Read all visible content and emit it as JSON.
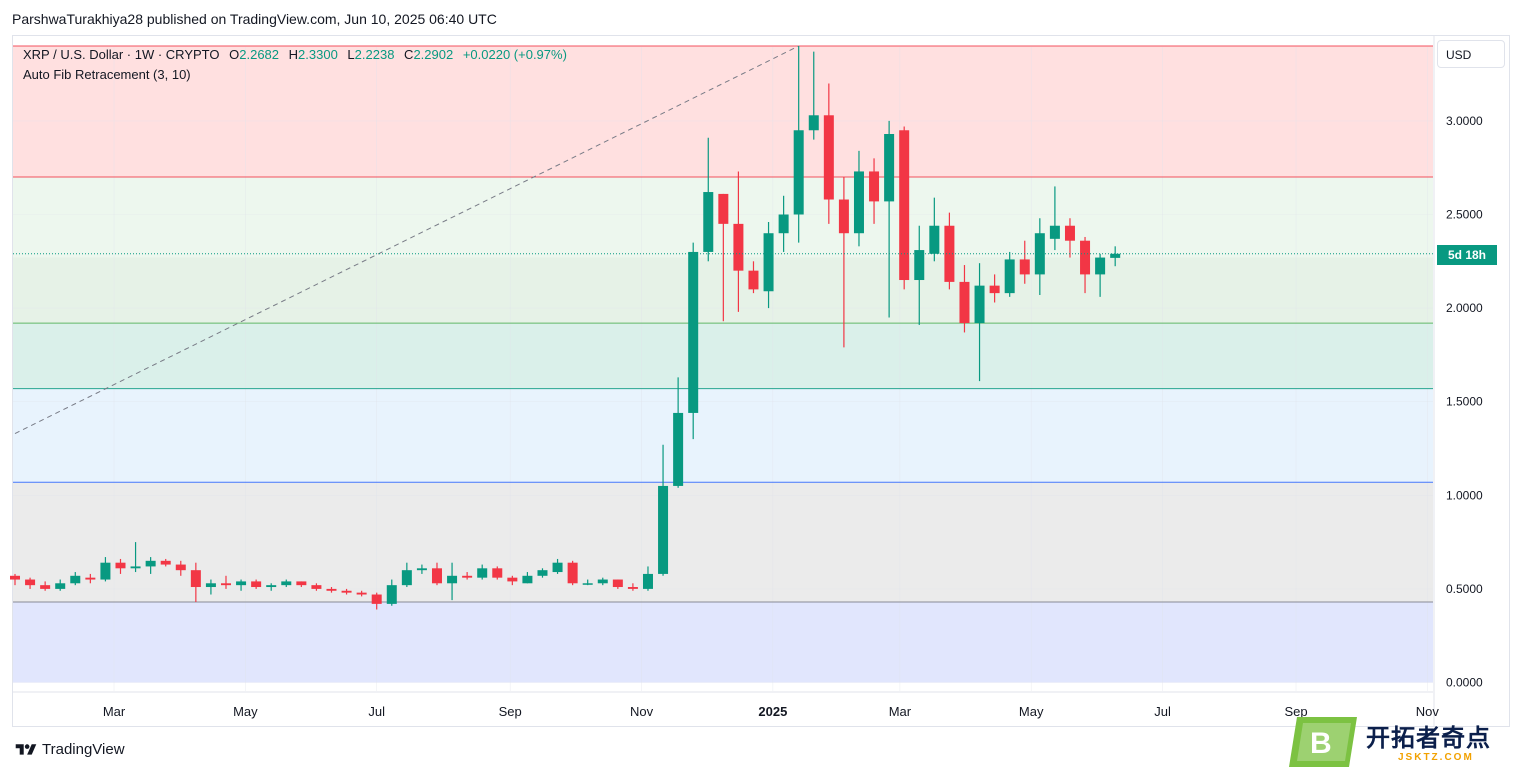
{
  "publisher_line": "ParshwaTurakhiya28 published on TradingView.com, Jun 10, 2025 06:40 UTC",
  "legend": {
    "symbol": "XRP / U.S. Dollar · 1W · CRYPTO",
    "o_label": "O",
    "o_value": "2.2682",
    "h_label": "H",
    "h_value": "2.3300",
    "l_label": "L",
    "l_value": "2.2238",
    "c_label": "C",
    "c_value": "2.2902",
    "change": "+0.0220 (+0.97%)",
    "indicator": "Auto Fib Retracement (3, 10)"
  },
  "currency_button": "USD",
  "countdown_badge": "5d 18h",
  "brand": "TradingView",
  "watermark": {
    "name": "开拓者奇点",
    "url": "JSKTZ.COM",
    "logo_letter": "B"
  },
  "colors": {
    "up": "#089981",
    "down": "#f23645",
    "fib_top": "#ffe0e0",
    "fib_2": "#edf7ee",
    "fib_3": "#e6f2e7",
    "fib_4": "#daf0ea",
    "fib_5": "#e8f3fd",
    "fib_6": "#ebebeb",
    "fib_7": "#e1e6fd"
  },
  "chart_data": {
    "type": "candlestick",
    "y_ticks": [
      "0.0000",
      "0.5000",
      "1.0000",
      "1.5000",
      "2.0000",
      "2.5000",
      "3.0000"
    ],
    "ylim": [
      0,
      3.4
    ],
    "x_ticks": [
      {
        "label": "Mar",
        "date": "2024-03-01"
      },
      {
        "label": "May",
        "date": "2024-05-01"
      },
      {
        "label": "Jul",
        "date": "2024-07-01"
      },
      {
        "label": "Sep",
        "date": "2024-09-01"
      },
      {
        "label": "Nov",
        "date": "2024-11-01"
      },
      {
        "label": "2025",
        "date": "2025-01-01",
        "bold": true
      },
      {
        "label": "Mar",
        "date": "2025-03-01"
      },
      {
        "label": "May",
        "date": "2025-05-01"
      },
      {
        "label": "Jul",
        "date": "2025-07-01"
      },
      {
        "label": "Sep",
        "date": "2025-09-01"
      },
      {
        "label": "Nov",
        "date": "2025-11-01"
      }
    ],
    "xlim": [
      "2024-01-15",
      "2025-12-05"
    ],
    "fib_levels": [
      3.4,
      2.7,
      1.92,
      1.57,
      1.07,
      0.43,
      0.0
    ],
    "trend_line": [
      {
        "date": "2024-01-15",
        "value": 1.33
      },
      {
        "date": "2025-01-13",
        "value": 3.4
      }
    ],
    "last_price": 2.2902,
    "candles": [
      {
        "date": "2024-01-15",
        "o": 0.57,
        "h": 0.58,
        "l": 0.52,
        "c": 0.55
      },
      {
        "date": "2024-01-22",
        "o": 0.55,
        "h": 0.56,
        "l": 0.5,
        "c": 0.52
      },
      {
        "date": "2024-01-29",
        "o": 0.52,
        "h": 0.54,
        "l": 0.49,
        "c": 0.5
      },
      {
        "date": "2024-02-05",
        "o": 0.5,
        "h": 0.55,
        "l": 0.49,
        "c": 0.53
      },
      {
        "date": "2024-02-12",
        "o": 0.53,
        "h": 0.59,
        "l": 0.52,
        "c": 0.57
      },
      {
        "date": "2024-02-19",
        "o": 0.56,
        "h": 0.58,
        "l": 0.53,
        "c": 0.55
      },
      {
        "date": "2024-02-26",
        "o": 0.55,
        "h": 0.67,
        "l": 0.54,
        "c": 0.64
      },
      {
        "date": "2024-03-04",
        "o": 0.64,
        "h": 0.66,
        "l": 0.58,
        "c": 0.61
      },
      {
        "date": "2024-03-11",
        "o": 0.61,
        "h": 0.75,
        "l": 0.59,
        "c": 0.62
      },
      {
        "date": "2024-03-18",
        "o": 0.62,
        "h": 0.67,
        "l": 0.58,
        "c": 0.65
      },
      {
        "date": "2024-03-25",
        "o": 0.65,
        "h": 0.66,
        "l": 0.62,
        "c": 0.63
      },
      {
        "date": "2024-04-01",
        "o": 0.63,
        "h": 0.65,
        "l": 0.57,
        "c": 0.6
      },
      {
        "date": "2024-04-08",
        "o": 0.6,
        "h": 0.64,
        "l": 0.43,
        "c": 0.51
      },
      {
        "date": "2024-04-15",
        "o": 0.51,
        "h": 0.55,
        "l": 0.47,
        "c": 0.53
      },
      {
        "date": "2024-04-22",
        "o": 0.53,
        "h": 0.57,
        "l": 0.5,
        "c": 0.52
      },
      {
        "date": "2024-04-29",
        "o": 0.52,
        "h": 0.55,
        "l": 0.49,
        "c": 0.54
      },
      {
        "date": "2024-05-06",
        "o": 0.54,
        "h": 0.55,
        "l": 0.5,
        "c": 0.51
      },
      {
        "date": "2024-05-13",
        "o": 0.51,
        "h": 0.53,
        "l": 0.49,
        "c": 0.52
      },
      {
        "date": "2024-05-20",
        "o": 0.52,
        "h": 0.55,
        "l": 0.51,
        "c": 0.54
      },
      {
        "date": "2024-05-27",
        "o": 0.54,
        "h": 0.54,
        "l": 0.51,
        "c": 0.52
      },
      {
        "date": "2024-06-03",
        "o": 0.52,
        "h": 0.53,
        "l": 0.49,
        "c": 0.5
      },
      {
        "date": "2024-06-10",
        "o": 0.5,
        "h": 0.51,
        "l": 0.48,
        "c": 0.49
      },
      {
        "date": "2024-06-17",
        "o": 0.49,
        "h": 0.5,
        "l": 0.47,
        "c": 0.48
      },
      {
        "date": "2024-06-24",
        "o": 0.48,
        "h": 0.49,
        "l": 0.46,
        "c": 0.47
      },
      {
        "date": "2024-07-01",
        "o": 0.47,
        "h": 0.48,
        "l": 0.39,
        "c": 0.42
      },
      {
        "date": "2024-07-08",
        "o": 0.42,
        "h": 0.55,
        "l": 0.41,
        "c": 0.52
      },
      {
        "date": "2024-07-15",
        "o": 0.52,
        "h": 0.64,
        "l": 0.51,
        "c": 0.6
      },
      {
        "date": "2024-07-22",
        "o": 0.6,
        "h": 0.63,
        "l": 0.58,
        "c": 0.61
      },
      {
        "date": "2024-07-29",
        "o": 0.61,
        "h": 0.64,
        "l": 0.52,
        "c": 0.53
      },
      {
        "date": "2024-08-05",
        "o": 0.53,
        "h": 0.64,
        "l": 0.44,
        "c": 0.57
      },
      {
        "date": "2024-08-12",
        "o": 0.57,
        "h": 0.59,
        "l": 0.55,
        "c": 0.56
      },
      {
        "date": "2024-08-19",
        "o": 0.56,
        "h": 0.63,
        "l": 0.55,
        "c": 0.61
      },
      {
        "date": "2024-08-26",
        "o": 0.61,
        "h": 0.62,
        "l": 0.55,
        "c": 0.56
      },
      {
        "date": "2024-09-02",
        "o": 0.56,
        "h": 0.57,
        "l": 0.52,
        "c": 0.54
      },
      {
        "date": "2024-09-09",
        "o": 0.53,
        "h": 0.59,
        "l": 0.53,
        "c": 0.57
      },
      {
        "date": "2024-09-16",
        "o": 0.57,
        "h": 0.61,
        "l": 0.56,
        "c": 0.6
      },
      {
        "date": "2024-09-23",
        "o": 0.59,
        "h": 0.66,
        "l": 0.58,
        "c": 0.64
      },
      {
        "date": "2024-09-30",
        "o": 0.64,
        "h": 0.65,
        "l": 0.52,
        "c": 0.53
      },
      {
        "date": "2024-10-07",
        "o": 0.53,
        "h": 0.55,
        "l": 0.52,
        "c": 0.53
      },
      {
        "date": "2024-10-14",
        "o": 0.53,
        "h": 0.56,
        "l": 0.52,
        "c": 0.55
      },
      {
        "date": "2024-10-21",
        "o": 0.55,
        "h": 0.55,
        "l": 0.5,
        "c": 0.51
      },
      {
        "date": "2024-10-28",
        "o": 0.51,
        "h": 0.53,
        "l": 0.49,
        "c": 0.5
      },
      {
        "date": "2024-11-04",
        "o": 0.5,
        "h": 0.62,
        "l": 0.49,
        "c": 0.58
      },
      {
        "date": "2024-11-11",
        "o": 0.58,
        "h": 1.27,
        "l": 0.57,
        "c": 1.05
      },
      {
        "date": "2024-11-18",
        "o": 1.05,
        "h": 1.63,
        "l": 1.04,
        "c": 1.44
      },
      {
        "date": "2024-11-25",
        "o": 1.44,
        "h": 2.35,
        "l": 1.3,
        "c": 2.3
      },
      {
        "date": "2024-12-02",
        "o": 2.3,
        "h": 2.91,
        "l": 2.25,
        "c": 2.62
      },
      {
        "date": "2024-12-09",
        "o": 2.61,
        "h": 2.61,
        "l": 1.93,
        "c": 2.45
      },
      {
        "date": "2024-12-16",
        "o": 2.45,
        "h": 2.73,
        "l": 1.98,
        "c": 2.2
      },
      {
        "date": "2024-12-23",
        "o": 2.2,
        "h": 2.25,
        "l": 2.08,
        "c": 2.1
      },
      {
        "date": "2024-12-30",
        "o": 2.09,
        "h": 2.46,
        "l": 2.0,
        "c": 2.4
      },
      {
        "date": "2025-01-06",
        "o": 2.4,
        "h": 2.6,
        "l": 2.3,
        "c": 2.5
      },
      {
        "date": "2025-01-13",
        "o": 2.5,
        "h": 3.4,
        "l": 2.35,
        "c": 2.95
      },
      {
        "date": "2025-01-20",
        "o": 2.95,
        "h": 3.37,
        "l": 2.9,
        "c": 3.03
      },
      {
        "date": "2025-01-27",
        "o": 3.03,
        "h": 3.2,
        "l": 2.45,
        "c": 2.58
      },
      {
        "date": "2025-02-03",
        "o": 2.58,
        "h": 2.7,
        "l": 1.79,
        "c": 2.4
      },
      {
        "date": "2025-02-10",
        "o": 2.4,
        "h": 2.84,
        "l": 2.33,
        "c": 2.73
      },
      {
        "date": "2025-02-17",
        "o": 2.73,
        "h": 2.8,
        "l": 2.45,
        "c": 2.57
      },
      {
        "date": "2025-02-24",
        "o": 2.57,
        "h": 3.0,
        "l": 1.95,
        "c": 2.93
      },
      {
        "date": "2025-03-03",
        "o": 2.95,
        "h": 2.97,
        "l": 2.1,
        "c": 2.15
      },
      {
        "date": "2025-03-10",
        "o": 2.15,
        "h": 2.44,
        "l": 1.91,
        "c": 2.31
      },
      {
        "date": "2025-03-17",
        "o": 2.29,
        "h": 2.59,
        "l": 2.25,
        "c": 2.44
      },
      {
        "date": "2025-03-24",
        "o": 2.44,
        "h": 2.51,
        "l": 2.1,
        "c": 2.14
      },
      {
        "date": "2025-03-31",
        "o": 2.14,
        "h": 2.23,
        "l": 1.87,
        "c": 1.92
      },
      {
        "date": "2025-04-07",
        "o": 1.92,
        "h": 2.24,
        "l": 1.61,
        "c": 2.12
      },
      {
        "date": "2025-04-14",
        "o": 2.12,
        "h": 2.18,
        "l": 2.03,
        "c": 2.08
      },
      {
        "date": "2025-04-21",
        "o": 2.08,
        "h": 2.3,
        "l": 2.06,
        "c": 2.26
      },
      {
        "date": "2025-04-28",
        "o": 2.26,
        "h": 2.36,
        "l": 2.13,
        "c": 2.18
      },
      {
        "date": "2025-05-05",
        "o": 2.18,
        "h": 2.48,
        "l": 2.07,
        "c": 2.4
      },
      {
        "date": "2025-05-12",
        "o": 2.37,
        "h": 2.65,
        "l": 2.31,
        "c": 2.44
      },
      {
        "date": "2025-05-19",
        "o": 2.44,
        "h": 2.48,
        "l": 2.27,
        "c": 2.36
      },
      {
        "date": "2025-05-26",
        "o": 2.36,
        "h": 2.38,
        "l": 2.08,
        "c": 2.18
      },
      {
        "date": "2025-06-02",
        "o": 2.18,
        "h": 2.29,
        "l": 2.06,
        "c": 2.27
      },
      {
        "date": "2025-06-09",
        "o": 2.2682,
        "h": 2.33,
        "l": 2.2238,
        "c": 2.2902
      }
    ]
  }
}
